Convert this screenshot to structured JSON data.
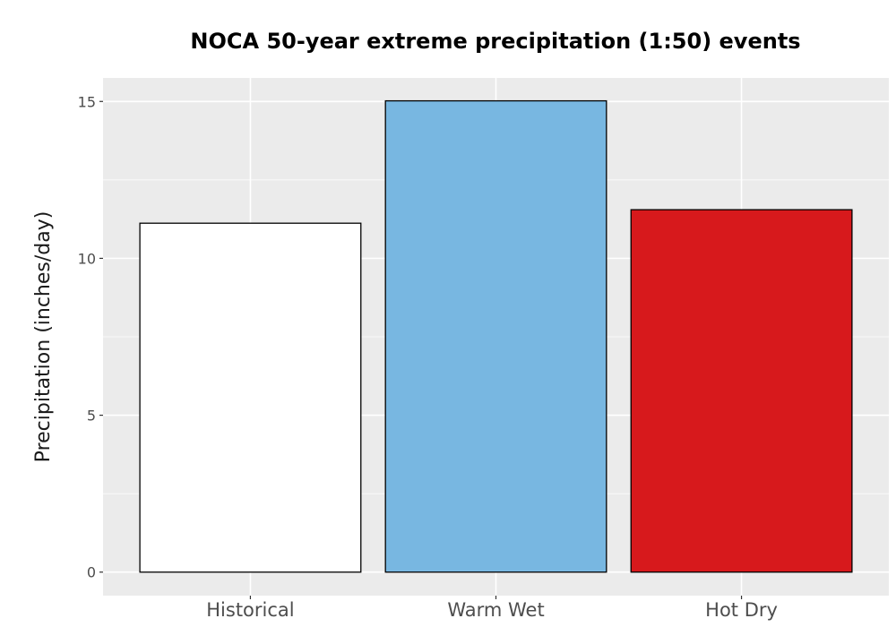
{
  "chart_data": {
    "type": "bar",
    "title": "NOCA 50-year extreme precipitation (1:50) events",
    "xlabel": "",
    "ylabel": "Precipitation (inches/day)",
    "categories": [
      "Historical",
      "Warm Wet",
      "Hot Dry"
    ],
    "values": [
      11.12,
      15.02,
      11.55
    ],
    "colors": [
      "#ffffff",
      "#78b7e1",
      "#d7191c"
    ],
    "ylim": [
      -0.75,
      15.75
    ],
    "yticks": [
      0,
      5,
      10,
      15
    ],
    "grid": true,
    "legend": "none",
    "panel_background": "#ebebeb",
    "bar_outline": "#000000"
  }
}
